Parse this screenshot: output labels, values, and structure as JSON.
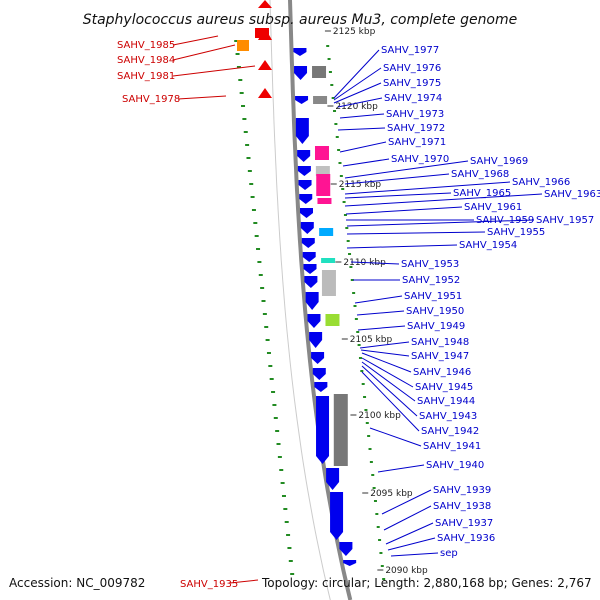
{
  "title": "Staphylococcus aureus subsp. aureus Mu3, complete genome",
  "footer": {
    "accession": "Accession: NC_009782",
    "topology": "Topology: circular; Length: 2,880,168 bp; Genes: 2,767",
    "bottom_gene": "SAHV_1935"
  },
  "colors": {
    "forward_gene": "#0000ee",
    "reverse_gene": "#ee0000",
    "label_forward": "#0000cc",
    "label_reverse": "#cc0000",
    "gc_dots": "#228b22",
    "backbone": "#888888"
  },
  "left_labels": [
    "SAHV_1985",
    "SAHV_1984",
    "SAHV_1981",
    "SAHV_1978"
  ],
  "right_labels": [
    "SAHV_1977",
    "SAHV_1976",
    "SAHV_1975",
    "SAHV_1974",
    "SAHV_1973",
    "SAHV_1972",
    "SAHV_1971",
    "SAHV_1970",
    "SAHV_1969",
    "SAHV_1968",
    "SAHV_1966",
    "SAHV_1965",
    "SAHV_1963",
    "SAHV_1961",
    "SAHV_1959",
    "SAHV_1957",
    "SAHV_1955",
    "SAHV_1954",
    "SAHV_1953",
    "SAHV_1952",
    "SAHV_1951",
    "SAHV_1950",
    "SAHV_1949",
    "SAHV_1948",
    "SAHV_1947",
    "SAHV_1946",
    "SAHV_1945",
    "SAHV_1944",
    "SAHV_1943",
    "SAHV_1942",
    "SAHV_1941",
    "SAHV_1940",
    "SAHV_1939",
    "SAHV_1938",
    "SAHV_1937",
    "SAHV_1936",
    "sep"
  ],
  "scale_ticks": [
    "2125 kbp",
    "2120 kbp",
    "2115 kbp",
    "2110 kbp",
    "2105 kbp",
    "2100 kbp",
    "2095 kbp",
    "2090 kbp"
  ]
}
